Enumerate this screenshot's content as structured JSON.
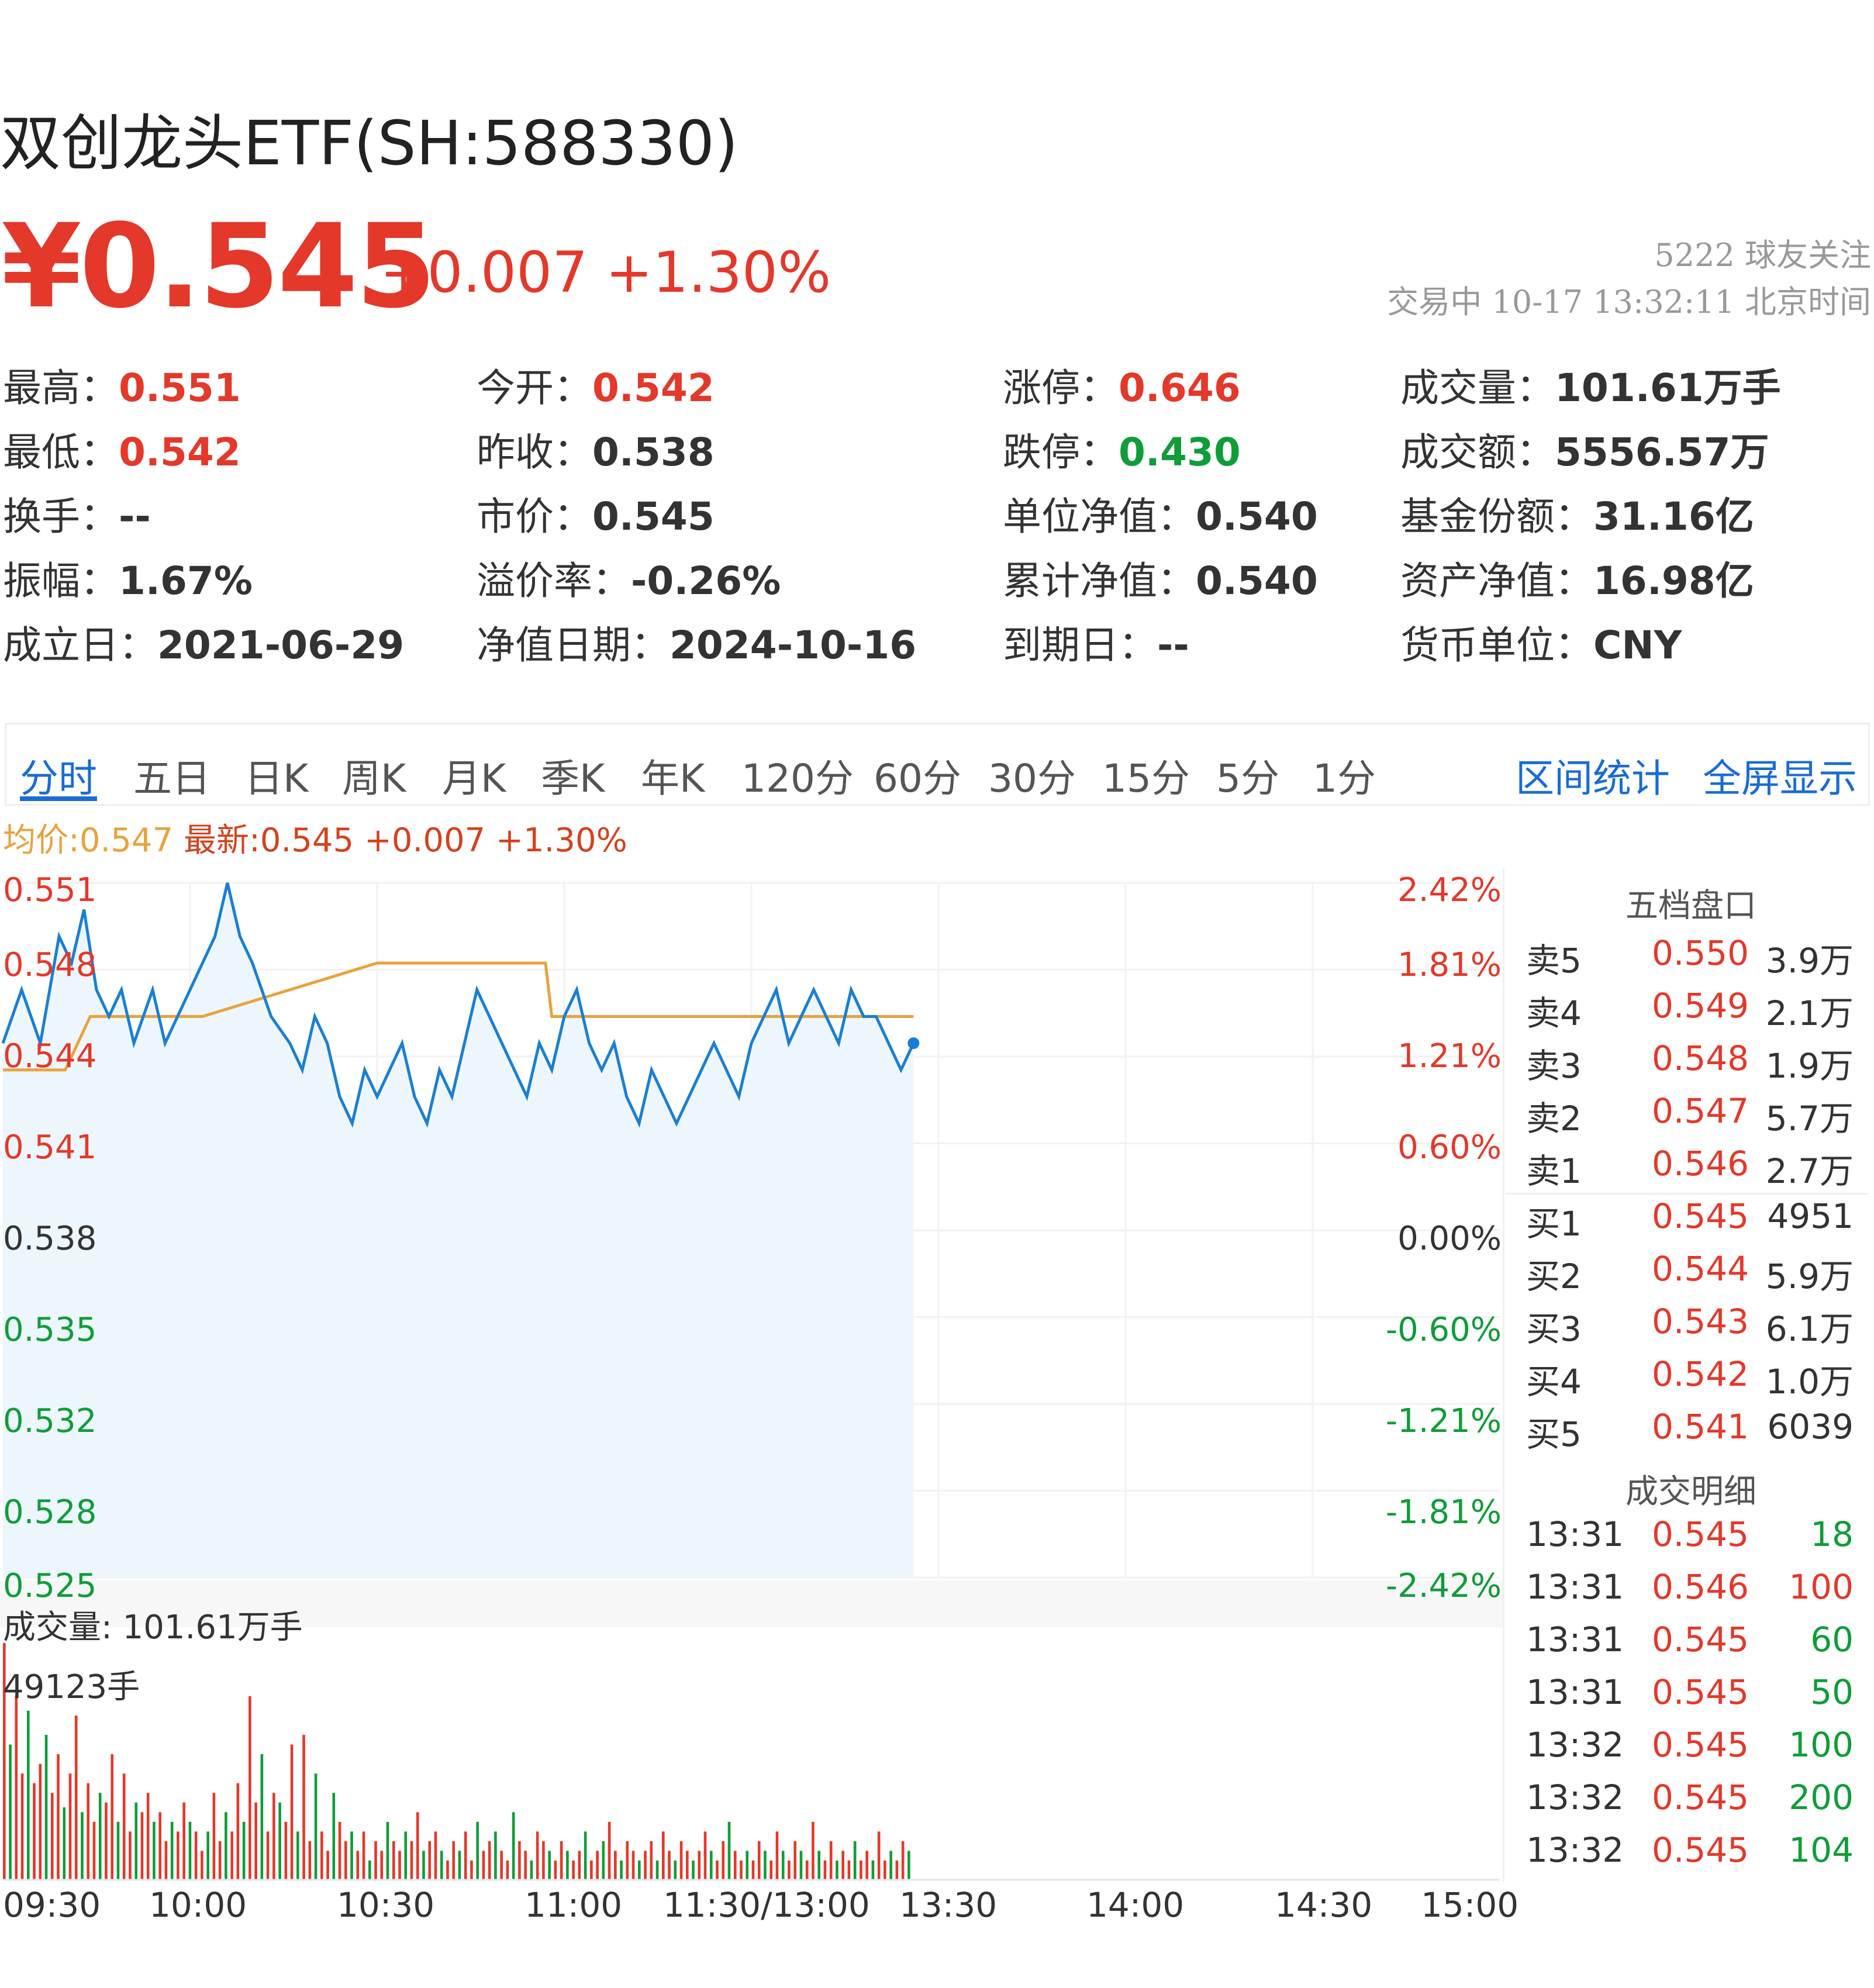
{
  "header": {
    "title": "双创龙头ETF(SH:588330)",
    "price": "¥0.545",
    "change": "+0.007 +1.30%",
    "followers": "5222 球友关注",
    "status_line": "交易中 10-17 13:32:11 北京时间"
  },
  "quote": [
    [
      {
        "label": "最高：",
        "value": "0.551",
        "tone": "red"
      },
      {
        "label": "今开：",
        "value": "0.542",
        "tone": "red"
      },
      {
        "label": "涨停：",
        "value": "0.646",
        "tone": "red"
      },
      {
        "label": "成交量：",
        "value": "101.61万手",
        "tone": "dark"
      }
    ],
    [
      {
        "label": "最低：",
        "value": "0.542",
        "tone": "red"
      },
      {
        "label": "昨收：",
        "value": "0.538",
        "tone": "dark"
      },
      {
        "label": "跌停：",
        "value": "0.430",
        "tone": "green"
      },
      {
        "label": "成交额：",
        "value": "5556.57万",
        "tone": "dark"
      }
    ],
    [
      {
        "label": "换手：",
        "value": "--",
        "tone": "dark"
      },
      {
        "label": "市价：",
        "value": "0.545",
        "tone": "dark"
      },
      {
        "label": "单位净值：",
        "value": "0.540",
        "tone": "dark"
      },
      {
        "label": "基金份额：",
        "value": "31.16亿",
        "tone": "dark"
      }
    ],
    [
      {
        "label": "振幅：",
        "value": "1.67%",
        "tone": "dark"
      },
      {
        "label": "溢价率：",
        "value": "-0.26%",
        "tone": "dark"
      },
      {
        "label": "累计净值：",
        "value": "0.540",
        "tone": "dark"
      },
      {
        "label": "资产净值：",
        "value": "16.98亿",
        "tone": "dark"
      }
    ],
    [
      {
        "label": "成立日：",
        "value": "2021-06-29",
        "tone": "dark"
      },
      {
        "label": "净值日期：",
        "value": "2024-10-16",
        "tone": "dark"
      },
      {
        "label": "到期日：",
        "value": "--",
        "tone": "dark"
      },
      {
        "label": "货币单位：",
        "value": "CNY",
        "tone": "dark"
      }
    ]
  ],
  "tabs": [
    "分时",
    "五日",
    "日K",
    "周K",
    "月K",
    "季K",
    "年K",
    "120分",
    "60分",
    "30分",
    "15分",
    "5分",
    "1分"
  ],
  "active_tab": "分时",
  "links": {
    "interval_stats": "区间统计",
    "fullscreen": "全屏显示"
  },
  "legend": {
    "avg": "均价:0.547",
    "latest": "最新:0.545 +0.007 +1.30%"
  },
  "colors": {
    "up": "#e4382a",
    "down": "#0f9d39",
    "price_line": "#1a7fd4",
    "avg_line": "#e8a33d",
    "accent": "#1a6cd4"
  },
  "chart_data": {
    "type": "line",
    "x_ticks": [
      "09:30",
      "10:00",
      "10:30",
      "11:00",
      "11:30/13:00",
      "13:30",
      "14:00",
      "14:30",
      "15:00"
    ],
    "y_ticks": [
      "0.551",
      "0.548",
      "0.544",
      "0.541",
      "0.538",
      "0.535",
      "0.532",
      "0.528",
      "0.525"
    ],
    "pct_ticks": [
      "2.42%",
      "1.81%",
      "1.21%",
      "0.60%",
      "0.00%",
      "-0.60%",
      "-1.21%",
      "-1.81%",
      "-2.42%"
    ],
    "ylim": [
      0.525,
      0.551
    ],
    "prev_close": 0.538,
    "series": [
      {
        "name": "均价",
        "x": [
          0,
          10,
          14,
          32,
          60,
          87,
          88,
          146
        ],
        "values": [
          0.544,
          0.544,
          0.546,
          0.546,
          0.548,
          0.548,
          0.546,
          0.546
        ]
      },
      {
        "name": "最新",
        "x": [
          0,
          3,
          6,
          9,
          11,
          13,
          15,
          17,
          19,
          21,
          24,
          26,
          28,
          30,
          32,
          34,
          36,
          38,
          40,
          43,
          46,
          48,
          50,
          52,
          54,
          56,
          58,
          60,
          62,
          64,
          66,
          68,
          70,
          72,
          74,
          76,
          78,
          80,
          82,
          84,
          86,
          88,
          90,
          92,
          94,
          96,
          98,
          100,
          102,
          104,
          106,
          108,
          110,
          112,
          114,
          116,
          118,
          120,
          122,
          124,
          126,
          128,
          130,
          132,
          134,
          136,
          138,
          140,
          142,
          144,
          146
        ],
        "values": [
          0.545,
          0.547,
          0.545,
          0.549,
          0.548,
          0.55,
          0.547,
          0.546,
          0.547,
          0.545,
          0.547,
          0.545,
          0.546,
          0.547,
          0.548,
          0.549,
          0.551,
          0.549,
          0.548,
          0.546,
          0.545,
          0.544,
          0.546,
          0.545,
          0.543,
          0.542,
          0.544,
          0.543,
          0.544,
          0.545,
          0.543,
          0.542,
          0.544,
          0.543,
          0.545,
          0.547,
          0.546,
          0.545,
          0.544,
          0.543,
          0.545,
          0.544,
          0.546,
          0.547,
          0.545,
          0.544,
          0.545,
          0.543,
          0.542,
          0.544,
          0.543,
          0.542,
          0.543,
          0.544,
          0.545,
          0.544,
          0.543,
          0.545,
          0.546,
          0.547,
          0.545,
          0.546,
          0.547,
          0.546,
          0.545,
          0.547,
          0.546,
          0.546,
          0.545,
          0.544,
          0.545
        ]
      }
    ],
    "volume": {
      "label": "成交量: 101.61万手",
      "max_label": "49123手",
      "values": [
        49,
        28,
        38,
        22,
        35,
        20,
        24,
        30,
        18,
        26,
        15,
        22,
        34,
        14,
        20,
        12,
        18,
        16,
        26,
        12,
        22,
        10,
        16,
        14,
        18,
        12,
        14,
        8,
        12,
        10,
        16,
        12,
        10,
        6,
        10,
        18,
        8,
        14,
        10,
        20,
        12,
        38,
        16,
        26,
        10,
        18,
        16,
        12,
        28,
        10,
        30,
        8,
        22,
        10,
        6,
        18,
        12,
        8,
        10,
        6,
        10,
        4,
        8,
        6,
        12,
        8,
        6,
        10,
        8,
        14,
        6,
        8,
        10,
        6,
        4,
        8,
        6,
        10,
        4,
        12,
        6,
        8,
        10,
        6,
        4,
        14,
        8,
        6,
        4,
        10,
        8,
        6,
        4,
        8,
        6,
        4,
        6,
        10,
        4,
        6,
        8,
        12,
        6,
        4,
        8,
        6,
        4,
        6,
        8,
        4,
        10,
        6,
        4,
        8,
        6,
        4,
        6,
        10,
        6,
        4,
        8,
        12,
        6,
        4,
        6,
        4,
        8,
        6,
        4,
        10,
        6,
        4,
        8,
        6,
        4,
        12,
        6,
        4,
        8,
        4,
        6,
        4,
        8,
        4,
        6,
        4,
        10,
        4,
        6,
        4,
        8,
        6
      ],
      "colors": "mixed"
    }
  },
  "order_book": {
    "title": "五档盘口",
    "asks": [
      {
        "name": "卖5",
        "price": "0.550",
        "qty": "3.9万"
      },
      {
        "name": "卖4",
        "price": "0.549",
        "qty": "2.1万"
      },
      {
        "name": "卖3",
        "price": "0.548",
        "qty": "1.9万"
      },
      {
        "name": "卖2",
        "price": "0.547",
        "qty": "5.7万"
      },
      {
        "name": "卖1",
        "price": "0.546",
        "qty": "2.7万"
      }
    ],
    "bids": [
      {
        "name": "买1",
        "price": "0.545",
        "qty": "4951"
      },
      {
        "name": "买2",
        "price": "0.544",
        "qty": "5.9万"
      },
      {
        "name": "买3",
        "price": "0.543",
        "qty": "6.1万"
      },
      {
        "name": "买4",
        "price": "0.542",
        "qty": "1.0万"
      },
      {
        "name": "买5",
        "price": "0.541",
        "qty": "6039"
      }
    ]
  },
  "trades": {
    "title": "成交明细",
    "rows": [
      {
        "time": "13:31",
        "price": "0.545",
        "qty": "18",
        "side": "down"
      },
      {
        "time": "13:31",
        "price": "0.546",
        "qty": "100",
        "side": "up"
      },
      {
        "time": "13:31",
        "price": "0.545",
        "qty": "60",
        "side": "down"
      },
      {
        "time": "13:31",
        "price": "0.545",
        "qty": "50",
        "side": "down"
      },
      {
        "time": "13:32",
        "price": "0.545",
        "qty": "100",
        "side": "down"
      },
      {
        "time": "13:32",
        "price": "0.545",
        "qty": "200",
        "side": "down"
      },
      {
        "time": "13:32",
        "price": "0.545",
        "qty": "104",
        "side": "down"
      }
    ]
  }
}
